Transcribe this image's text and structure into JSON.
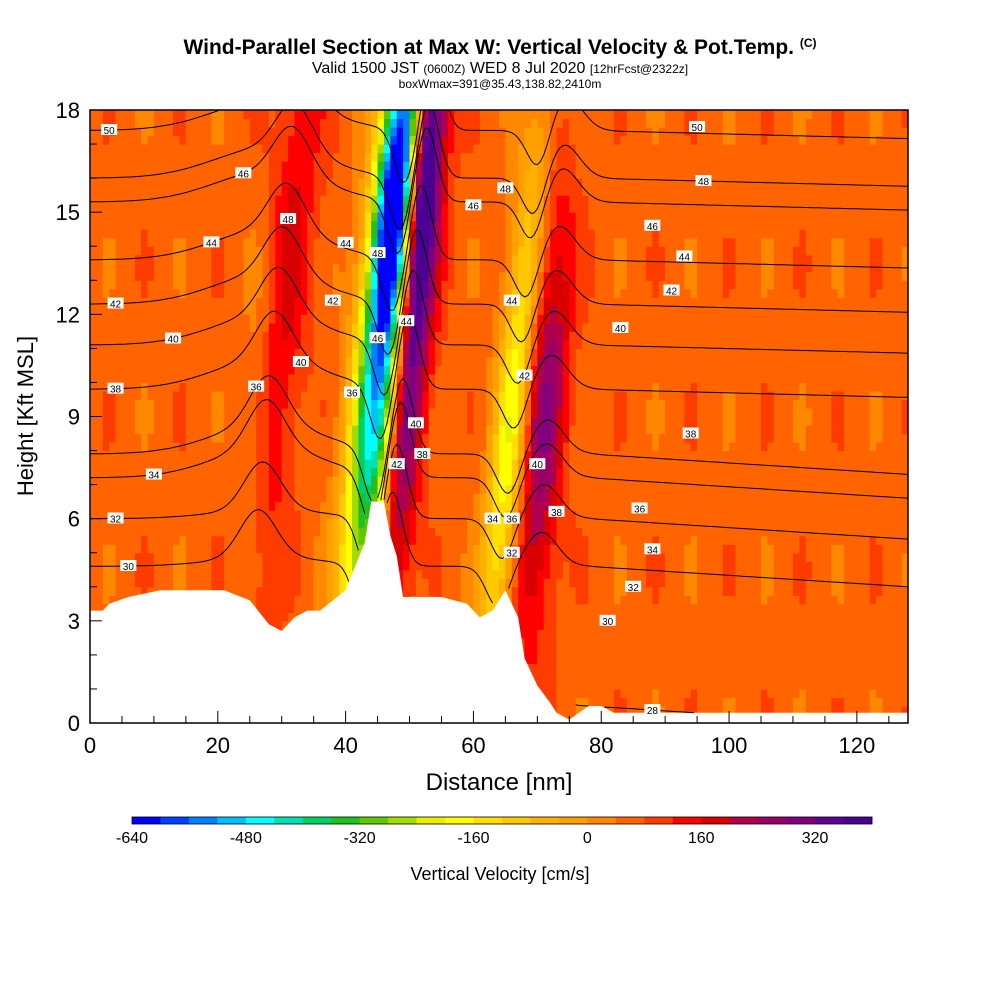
{
  "title": {
    "main": "Wind-Parallel Section at Max W: Vertical Velocity & Pot.Temp.",
    "copyright": "(C)",
    "valid_a": "Valid 1500 JST",
    "valid_b": "(0600Z)",
    "valid_c": "WED 8 Jul 2020",
    "valid_d": "[12hrFcst@2322z]",
    "box": "boxWmax=391@35.43,138.82,2410m"
  },
  "chart_data": {
    "type": "heatmap",
    "xlabel": "Distance [nm]",
    "ylabel": "Height [Kft MSL]",
    "xlim": [
      0,
      128
    ],
    "ylim": [
      0,
      18
    ],
    "x_ticks": [
      0,
      20,
      40,
      60,
      80,
      100,
      120
    ],
    "y_ticks": [
      0,
      3,
      6,
      9,
      12,
      15,
      18
    ],
    "colorbar": {
      "label": "Vertical Velocity [cm/s]",
      "min": -640,
      "max": 400,
      "step": 40,
      "tick_values": [
        -640,
        -480,
        -320,
        -160,
        0,
        160,
        320
      ],
      "tick_labels": [
        "-640",
        "-480",
        "-320",
        "-160",
        "0",
        "160",
        "320"
      ],
      "colors": [
        "#0000ff",
        "#0040ff",
        "#0080ff",
        "#00c0ff",
        "#00ffff",
        "#00e0b0",
        "#00d060",
        "#20c020",
        "#60c800",
        "#a0dc00",
        "#e8f000",
        "#ffff00",
        "#ffe000",
        "#ffc800",
        "#ffb000",
        "#ffa000",
        "#ff8800",
        "#ff6400",
        "#ff3c00",
        "#ff0000",
        "#d80000",
        "#b0004c",
        "#980068",
        "#800080",
        "#600090",
        "#4a0090"
      ]
    },
    "terrain_kft": [
      [
        0,
        3.3
      ],
      [
        2,
        3.3
      ],
      [
        3,
        3.5
      ],
      [
        6,
        3.7
      ],
      [
        11,
        3.9
      ],
      [
        21,
        3.9
      ],
      [
        25,
        3.6
      ],
      [
        28,
        2.9
      ],
      [
        30,
        2.7
      ],
      [
        32,
        3.1
      ],
      [
        34,
        3.3
      ],
      [
        36,
        3.3
      ],
      [
        40,
        3.9
      ],
      [
        43,
        5.3
      ],
      [
        44,
        6.5
      ],
      [
        46,
        6.5
      ],
      [
        47,
        5.5
      ],
      [
        48,
        4.9
      ],
      [
        49,
        3.7
      ],
      [
        55,
        3.7
      ],
      [
        59,
        3.5
      ],
      [
        61,
        3.1
      ],
      [
        63,
        3.3
      ],
      [
        65,
        3.9
      ],
      [
        67,
        3.1
      ],
      [
        68,
        1.9
      ],
      [
        70,
        1.1
      ],
      [
        72,
        0.6
      ],
      [
        73,
        0.3
      ],
      [
        75,
        0.1
      ],
      [
        78,
        0.5
      ],
      [
        80,
        0.5
      ],
      [
        82,
        0.3
      ],
      [
        128,
        0.3
      ]
    ],
    "w_cells": [
      {
        "x": 46,
        "z": 11,
        "sx": 2.8,
        "sz": 6.5,
        "w": -600,
        "tilt": 3.0
      },
      {
        "x": 48,
        "z": 16,
        "sx": 2.0,
        "sz": 3.0,
        "w": -420,
        "tilt": 3.0
      },
      {
        "x": 50,
        "z": 11,
        "sx": 2.2,
        "sz": 6.5,
        "w": 380,
        "tilt": 3.0
      },
      {
        "x": 52,
        "z": 16,
        "sx": 1.6,
        "sz": 3.0,
        "w": 300,
        "tilt": 3.0
      },
      {
        "x": 66,
        "z": 9,
        "sx": 2.0,
        "sz": 6.0,
        "w": -260,
        "tilt": 3.0
      },
      {
        "x": 71,
        "z": 9,
        "sx": 2.4,
        "sz": 4.5,
        "w": 220,
        "tilt": 2.0
      },
      {
        "x": 30,
        "z": 12,
        "sx": 2.8,
        "sz": 7.0,
        "w": 120,
        "tilt": 3.0
      },
      {
        "x": 26,
        "z": 9,
        "sx": 2.0,
        "sz": 4.0,
        "w": -80,
        "tilt": 2.0
      }
    ],
    "contours": [
      {
        "value": 28,
        "label": "28",
        "label_x": 88,
        "base": 0.5,
        "start_x": 76
      },
      {
        "value": 30,
        "label": "30",
        "label_x": 6,
        "base": 4.6
      },
      {
        "value": 32,
        "label": "32",
        "label_x": 4,
        "base": 6.0
      },
      {
        "value": 34,
        "label": "34",
        "label_x": 10,
        "base": 7.2
      },
      {
        "value": 36,
        "label": "36",
        "label_x": 26,
        "base": 7.9
      },
      {
        "value": 38,
        "label": "38",
        "label_x": 4,
        "base": 9.8
      },
      {
        "value": 40,
        "label": "40",
        "label_x": 13,
        "base": 11.1
      },
      {
        "value": 42,
        "label": "42",
        "label_x": 4,
        "base": 12.3
      },
      {
        "value": 44,
        "label": "44",
        "label_x": 19,
        "base": 13.6
      },
      {
        "value": 46,
        "label": "46",
        "label_x": 24,
        "base": 15.3
      },
      {
        "value": 48,
        "label": "48",
        "label_x": 96,
        "base": 16.0
      },
      {
        "value": 50,
        "label": "50",
        "label_x": 3,
        "base": 17.4
      }
    ],
    "extra_labels": [
      {
        "text": "48",
        "x": 31,
        "z": 14.8
      },
      {
        "text": "44",
        "x": 40,
        "z": 14.1
      },
      {
        "text": "48",
        "x": 45,
        "z": 13.8
      },
      {
        "text": "46",
        "x": 45,
        "z": 11.3
      },
      {
        "text": "44",
        "x": 49.5,
        "z": 11.8
      },
      {
        "text": "42",
        "x": 38,
        "z": 12.4
      },
      {
        "text": "40",
        "x": 33,
        "z": 10.6
      },
      {
        "text": "36",
        "x": 41,
        "z": 9.7
      },
      {
        "text": "40",
        "x": 51,
        "z": 8.8
      },
      {
        "text": "38",
        "x": 52,
        "z": 7.9
      },
      {
        "text": "42",
        "x": 48,
        "z": 7.6
      },
      {
        "text": "46",
        "x": 60,
        "z": 15.2
      },
      {
        "text": "48",
        "x": 65,
        "z": 15.7
      },
      {
        "text": "44",
        "x": 66,
        "z": 12.4
      },
      {
        "text": "42",
        "x": 68,
        "z": 10.2
      },
      {
        "text": "40",
        "x": 70,
        "z": 7.6
      },
      {
        "text": "38",
        "x": 73,
        "z": 6.2
      },
      {
        "text": "34",
        "x": 63,
        "z": 6.0
      },
      {
        "text": "36",
        "x": 66,
        "z": 6.0
      },
      {
        "text": "32",
        "x": 66,
        "z": 5.0
      },
      {
        "text": "40",
        "x": 83,
        "z": 11.6
      },
      {
        "text": "38",
        "x": 94,
        "z": 8.5
      },
      {
        "text": "36",
        "x": 86,
        "z": 6.3
      },
      {
        "text": "34",
        "x": 88,
        "z": 5.1
      },
      {
        "text": "32",
        "x": 85,
        "z": 4.0
      },
      {
        "text": "30",
        "x": 81,
        "z": 3.0
      },
      {
        "text": "42",
        "x": 91,
        "z": 12.7
      },
      {
        "text": "44",
        "x": 93,
        "z": 13.7
      },
      {
        "text": "46",
        "x": 88,
        "z": 14.6
      },
      {
        "text": "50",
        "x": 95,
        "z": 17.5
      }
    ]
  }
}
